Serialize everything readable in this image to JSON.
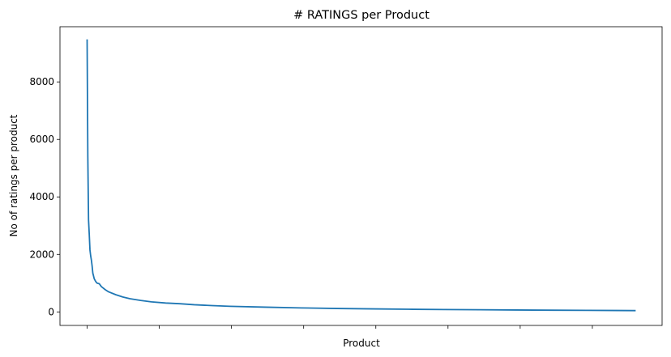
{
  "chart_data": {
    "type": "line",
    "title": "# RATINGS per Product",
    "xlabel": "Product",
    "ylabel": "No of ratings per product",
    "xlim": [
      -38,
      805
    ],
    "ylim": [
      -470,
      9920
    ],
    "x_tick_count": 9,
    "x_tick_labels_shown": false,
    "y_ticks": [
      0,
      2000,
      4000,
      6000,
      8000
    ],
    "grid": false,
    "legend": "none",
    "line_color": "#1f77b4",
    "series": [
      {
        "x": [
          0,
          1,
          2,
          3,
          4,
          5,
          6,
          7,
          8,
          10,
          12,
          14,
          17,
          20,
          25,
          30,
          40,
          50,
          60,
          75,
          90,
          110,
          130,
          150,
          175,
          200,
          250,
          300,
          350,
          400,
          450,
          500,
          550,
          600,
          650,
          700,
          768
        ],
        "values": [
          9480,
          5400,
          3200,
          2700,
          2150,
          1950,
          1800,
          1600,
          1350,
          1150,
          1060,
          1000,
          980,
          880,
          780,
          700,
          600,
          520,
          460,
          400,
          350,
          310,
          285,
          250,
          220,
          195,
          165,
          140,
          120,
          105,
          93,
          83,
          75,
          67,
          60,
          55,
          45
        ]
      }
    ]
  }
}
